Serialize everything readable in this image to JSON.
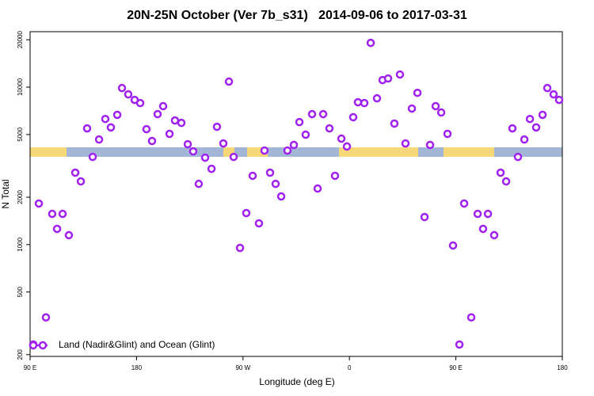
{
  "chart_data": {
    "type": "scatter",
    "title": "20N-25N October (Ver 7b_s31)   2014-09-06 to 2017-03-31",
    "x_label": "Longitude (deg E)",
    "y_label": "N Total",
    "log_y": true,
    "xlim": [
      90,
      540
    ],
    "ylim": [
      195,
      22500
    ],
    "xticks": [
      {
        "value": 90,
        "label": "90 E"
      },
      180,
      {
        "value": 270,
        "label": "90 W"
      },
      {
        "value": 360,
        "label": "0"
      },
      {
        "value": 450,
        "label": "90 E"
      },
      {
        "value": 540,
        "label": "180"
      }
    ],
    "yticks": [
      200,
      500,
      1000,
      2000,
      5000,
      10000,
      20000
    ],
    "legend_position": "lower left",
    "series": [
      {
        "name": "Land (Nadir&Glint) and Ocean (Glint)",
        "color": "#a020f0",
        "x": [
          92.7,
          97.4,
          103.4,
          108.7,
          112.8,
          117.5,
          122.8,
          128.2,
          132.9,
          138.2,
          142.9,
          148.3,
          153.6,
          158.3,
          163.7,
          167.7,
          173.0,
          178.4,
          183.1,
          188.4,
          193.1,
          197.8,
          202.5,
          207.9,
          212.5,
          217.9,
          223.3,
          227.9,
          232.6,
          238.0,
          243.4,
          248.0,
          253.4,
          258.1,
          262.1,
          267.5,
          272.8,
          278.2,
          283.5,
          288.2,
          292.9,
          297.6,
          302.3,
          307.6,
          313.0,
          317.7,
          323.0,
          328.4,
          333.1,
          337.8,
          343.1,
          347.8,
          353.2,
          357.9,
          363.2,
          367.2,
          372.6,
          378.0,
          383.3,
          388.0,
          392.7,
          398.0,
          402.7,
          407.4,
          412.8,
          417.5,
          423.5,
          428.2,
          432.9,
          437.6,
          442.9,
          447.6,
          453.0,
          457.0,
          463.0,
          468.4,
          473.0,
          477.1,
          482.4,
          487.8,
          492.5,
          497.8,
          502.5,
          507.9,
          512.6,
          517.9,
          523.3,
          527.3,
          532.6,
          537.3
        ],
        "values": [
          232,
          1824,
          345,
          1567,
          1259,
          1567,
          1148,
          2863,
          2520,
          5470,
          3605,
          4650,
          6280,
          5550,
          6670,
          9870,
          9000,
          8300,
          7920,
          5410,
          4550,
          6740,
          7570,
          5050,
          6140,
          5930,
          4340,
          3910,
          2430,
          3565,
          3030,
          5600,
          4390,
          10840,
          3605,
          953,
          1586,
          2735,
          1365,
          3955,
          2863,
          2430,
          2023,
          3955,
          4295,
          6000,
          4990,
          6740,
          2270,
          6740,
          5470,
          2735,
          4710,
          4200,
          6440,
          8020,
          7920,
          19100,
          8490,
          11090,
          11350,
          5870,
          12030,
          4390,
          7310,
          9200,
          1497,
          4295,
          7570,
          6900,
          5050,
          987,
          232,
          1824,
          345,
          1567,
          1259,
          1567,
          1148,
          2863,
          2520,
          5470,
          3605,
          4650,
          6280,
          5550,
          6670,
          9870,
          9000,
          8300
        ]
      }
    ]
  }
}
